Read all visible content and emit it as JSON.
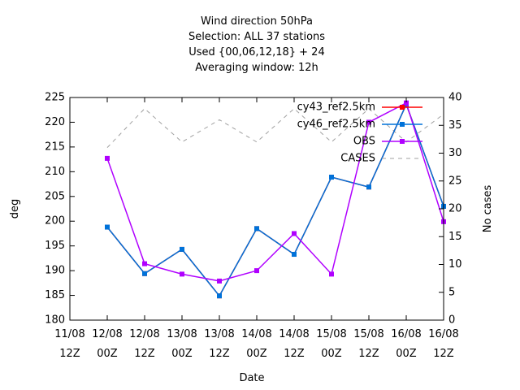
{
  "chart_data": {
    "type": "line",
    "title_lines": [
      "Wind direction 50hPa",
      "Selection: ALL     37 stations",
      "Used {00,06,12,18} + 24",
      "Averaging window: 12h"
    ],
    "xlabel": "Date",
    "ylabel": "deg",
    "y2label": "No cases",
    "ylim": [
      180,
      225
    ],
    "y_ticks": [
      "180",
      "185",
      "190",
      "195",
      "200",
      "205",
      "210",
      "215",
      "220",
      "225"
    ],
    "y2lim": [
      0,
      40
    ],
    "y2_ticks": [
      "0",
      "5",
      "10",
      "15",
      "20",
      "25",
      "30",
      "35",
      "40"
    ],
    "x_ticks": [
      [
        "11/08",
        "12Z"
      ],
      [
        "12/08",
        "00Z"
      ],
      [
        "12/08",
        "12Z"
      ],
      [
        "13/08",
        "00Z"
      ],
      [
        "13/08",
        "12Z"
      ],
      [
        "14/08",
        "00Z"
      ],
      [
        "14/08",
        "12Z"
      ],
      [
        "15/08",
        "00Z"
      ],
      [
        "15/08",
        "12Z"
      ],
      [
        "16/08",
        "00Z"
      ],
      [
        "16/08",
        "12Z"
      ]
    ],
    "x_hours": [
      6,
      18,
      30,
      42,
      54,
      66,
      78,
      90,
      102,
      114
    ],
    "xlim_hours": [
      -6,
      114
    ],
    "grid": false,
    "legend_position": "top-right",
    "series": [
      {
        "name": "cy43_ref2.5km",
        "axis": "left",
        "color": "#ff0000",
        "marker": "square",
        "values": [
          198.8,
          189.4,
          194.3,
          184.9,
          198.5,
          193.3,
          208.9,
          206.9,
          223.6,
          203.0
        ]
      },
      {
        "name": "cy46_ref2.5km",
        "axis": "left",
        "color": "#0072d9",
        "marker": "square",
        "values": [
          198.8,
          189.4,
          194.3,
          184.9,
          198.5,
          193.3,
          208.9,
          206.9,
          223.6,
          203.0
        ]
      },
      {
        "name": "OBS",
        "axis": "left",
        "color": "#b000ff",
        "marker": "square",
        "values": [
          212.7,
          191.4,
          189.3,
          187.9,
          190.0,
          197.5,
          189.3,
          220.0,
          223.9,
          199.9
        ]
      },
      {
        "name": "CASES",
        "axis": "right",
        "color": "#a0a0a0",
        "dash": true,
        "values": [
          31,
          38,
          32,
          36,
          32,
          38,
          32,
          38,
          32,
          37
        ]
      }
    ]
  }
}
